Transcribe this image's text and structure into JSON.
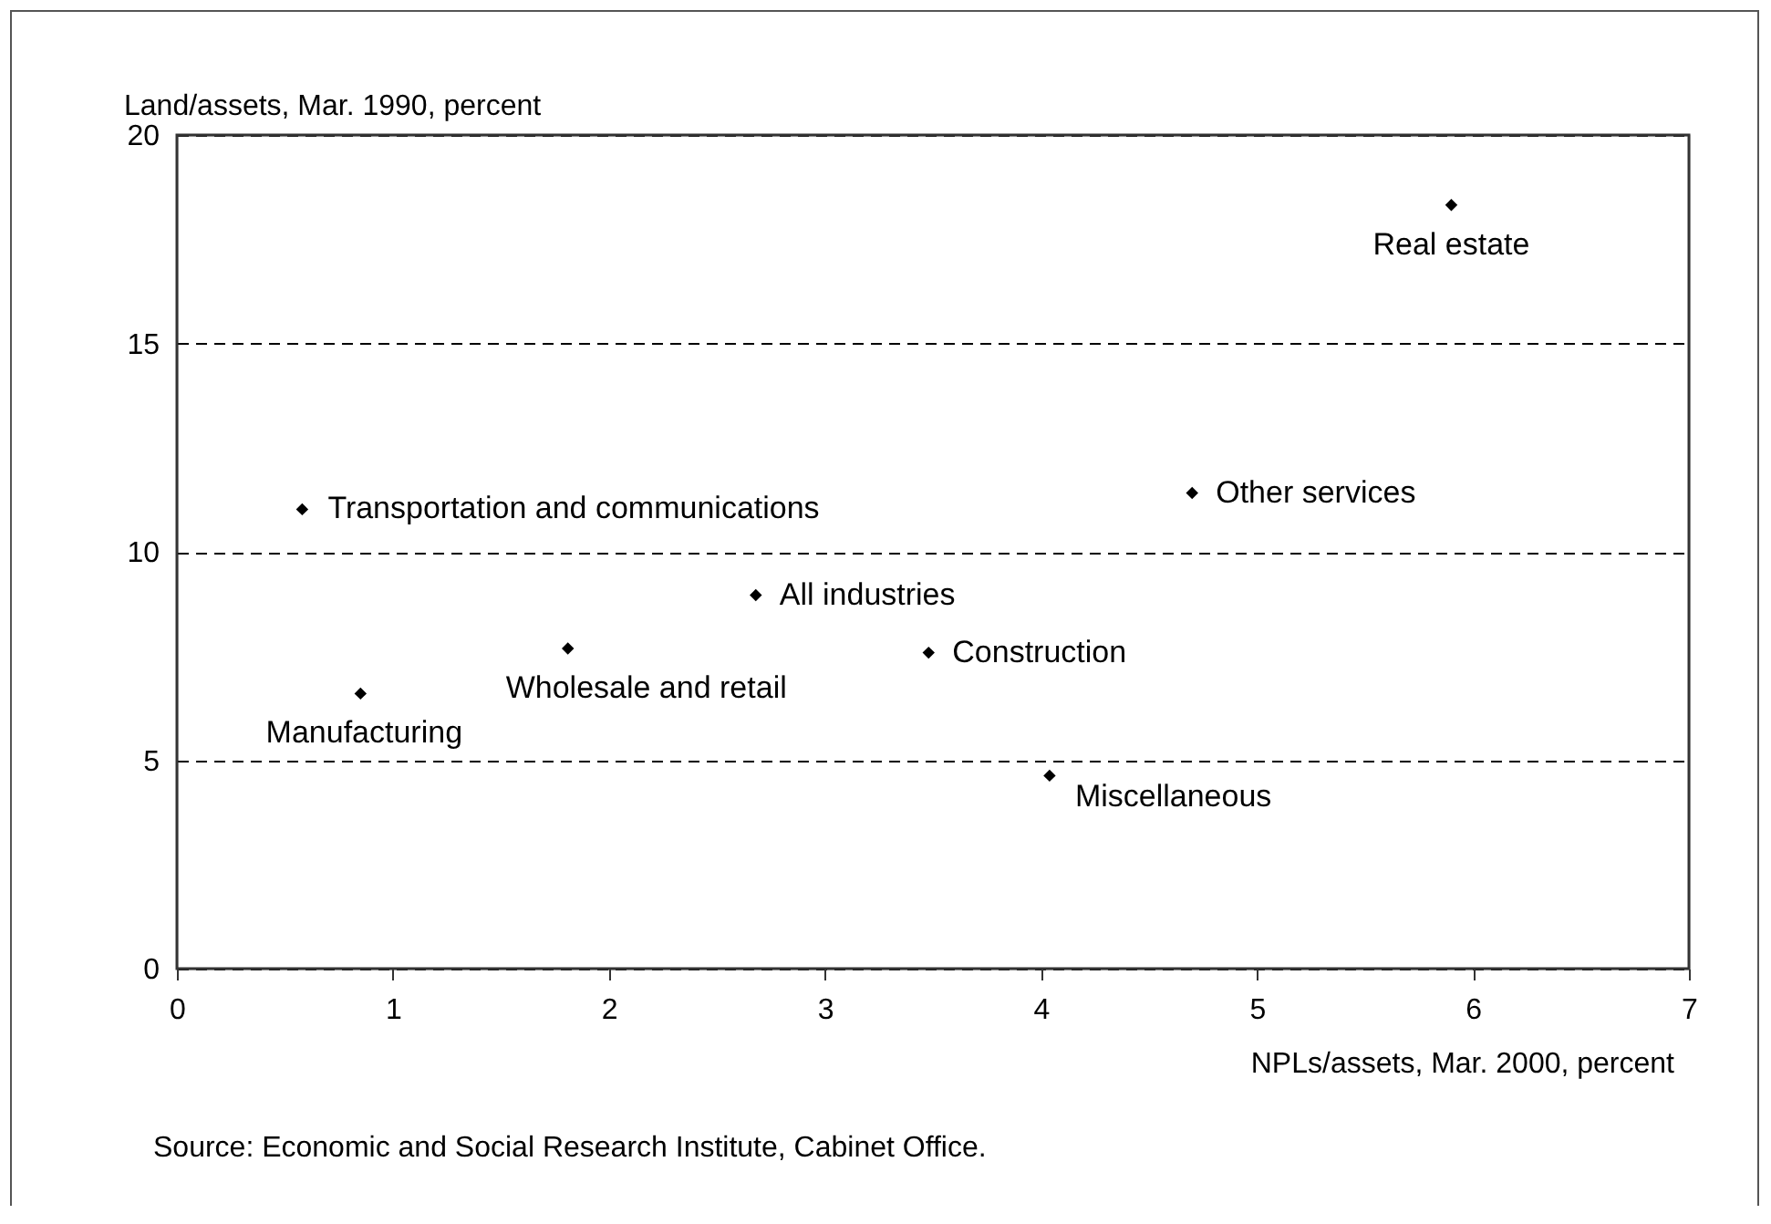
{
  "chart_data": {
    "type": "scatter",
    "xlabel": "NPLs/assets, Mar. 2000, percent",
    "ylabel": "Land/assets, Mar. 1990, percent",
    "series": [
      {
        "color": "#000000",
        "x": [
          5.9,
          4.7,
          0.58,
          2.68,
          3.48,
          1.81,
          0.85,
          4.04
        ],
        "values": [
          18.32,
          11.41,
          11.02,
          8.96,
          7.58,
          7.68,
          6.6,
          4.63
        ]
      }
    ],
    "marker": "diamond",
    "xlim": [
      0,
      7
    ],
    "xticks": [
      0,
      1,
      2,
      3,
      4,
      5,
      6,
      7
    ],
    "ylim": [
      0,
      20
    ],
    "yticks": [
      0,
      5,
      10,
      15,
      20
    ],
    "grid": "y",
    "annotations": [
      {
        "text": "Real estate",
        "x": 5.9,
        "y": 18.32
      },
      {
        "text": "Other services",
        "x": 4.7,
        "y": 11.41
      },
      {
        "text": "Transportation and communications",
        "x": 0.58,
        "y": 11.02
      },
      {
        "text": "All industries",
        "x": 2.68,
        "y": 8.96
      },
      {
        "text": "Construction",
        "x": 3.48,
        "y": 7.58
      },
      {
        "text": "Wholesale and retail",
        "x": 1.81,
        "y": 7.68
      },
      {
        "text": "Manufacturing",
        "x": 0.85,
        "y": 6.6
      },
      {
        "text": "Miscellaneous",
        "x": 4.04,
        "y": 4.63
      },
      "Source: Economic and Social Research Institute, Cabinet Office."
    ]
  }
}
